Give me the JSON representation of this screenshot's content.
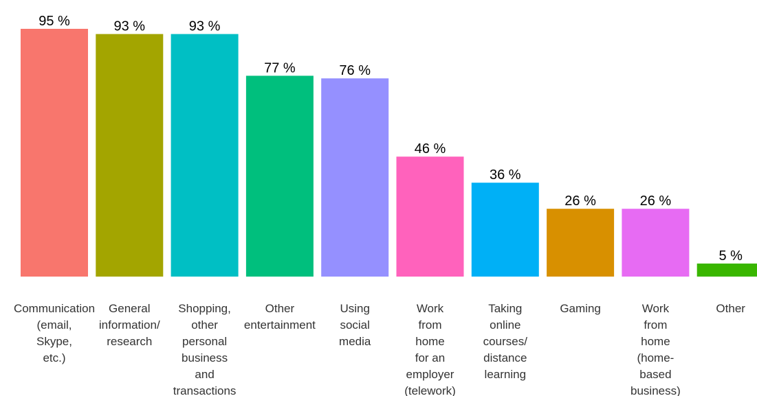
{
  "chart_data": {
    "type": "bar",
    "title": "",
    "xlabel": "",
    "ylabel": "",
    "ylim": [
      0,
      100
    ],
    "grid": false,
    "legend": "none",
    "value_suffix": " %",
    "categories": [
      [
        "Communication",
        "(email,",
        "Skype,",
        "etc.)"
      ],
      [
        "General",
        "information/",
        "research"
      ],
      [
        "Shopping,",
        "other",
        "personal",
        "business",
        "and",
        "transactions"
      ],
      [
        "Other",
        "entertainment"
      ],
      [
        "Using",
        "social",
        "media"
      ],
      [
        "Work",
        "from",
        "home",
        "for an",
        "employer",
        "(telework)"
      ],
      [
        "Taking",
        "online",
        "courses/",
        "distance",
        "learning"
      ],
      [
        "Gaming"
      ],
      [
        "Work",
        "from",
        "home",
        "(home-",
        "based",
        "business)"
      ],
      [
        "Other"
      ]
    ],
    "values": [
      95,
      93,
      93,
      77,
      76,
      46,
      36,
      26,
      26,
      5
    ],
    "colors": [
      "#F8766D",
      "#A3A500",
      "#00BFC4",
      "#00BF7D",
      "#9590FF",
      "#FF62BC",
      "#00B0F6",
      "#D89000",
      "#E76BF3",
      "#39B600"
    ]
  }
}
